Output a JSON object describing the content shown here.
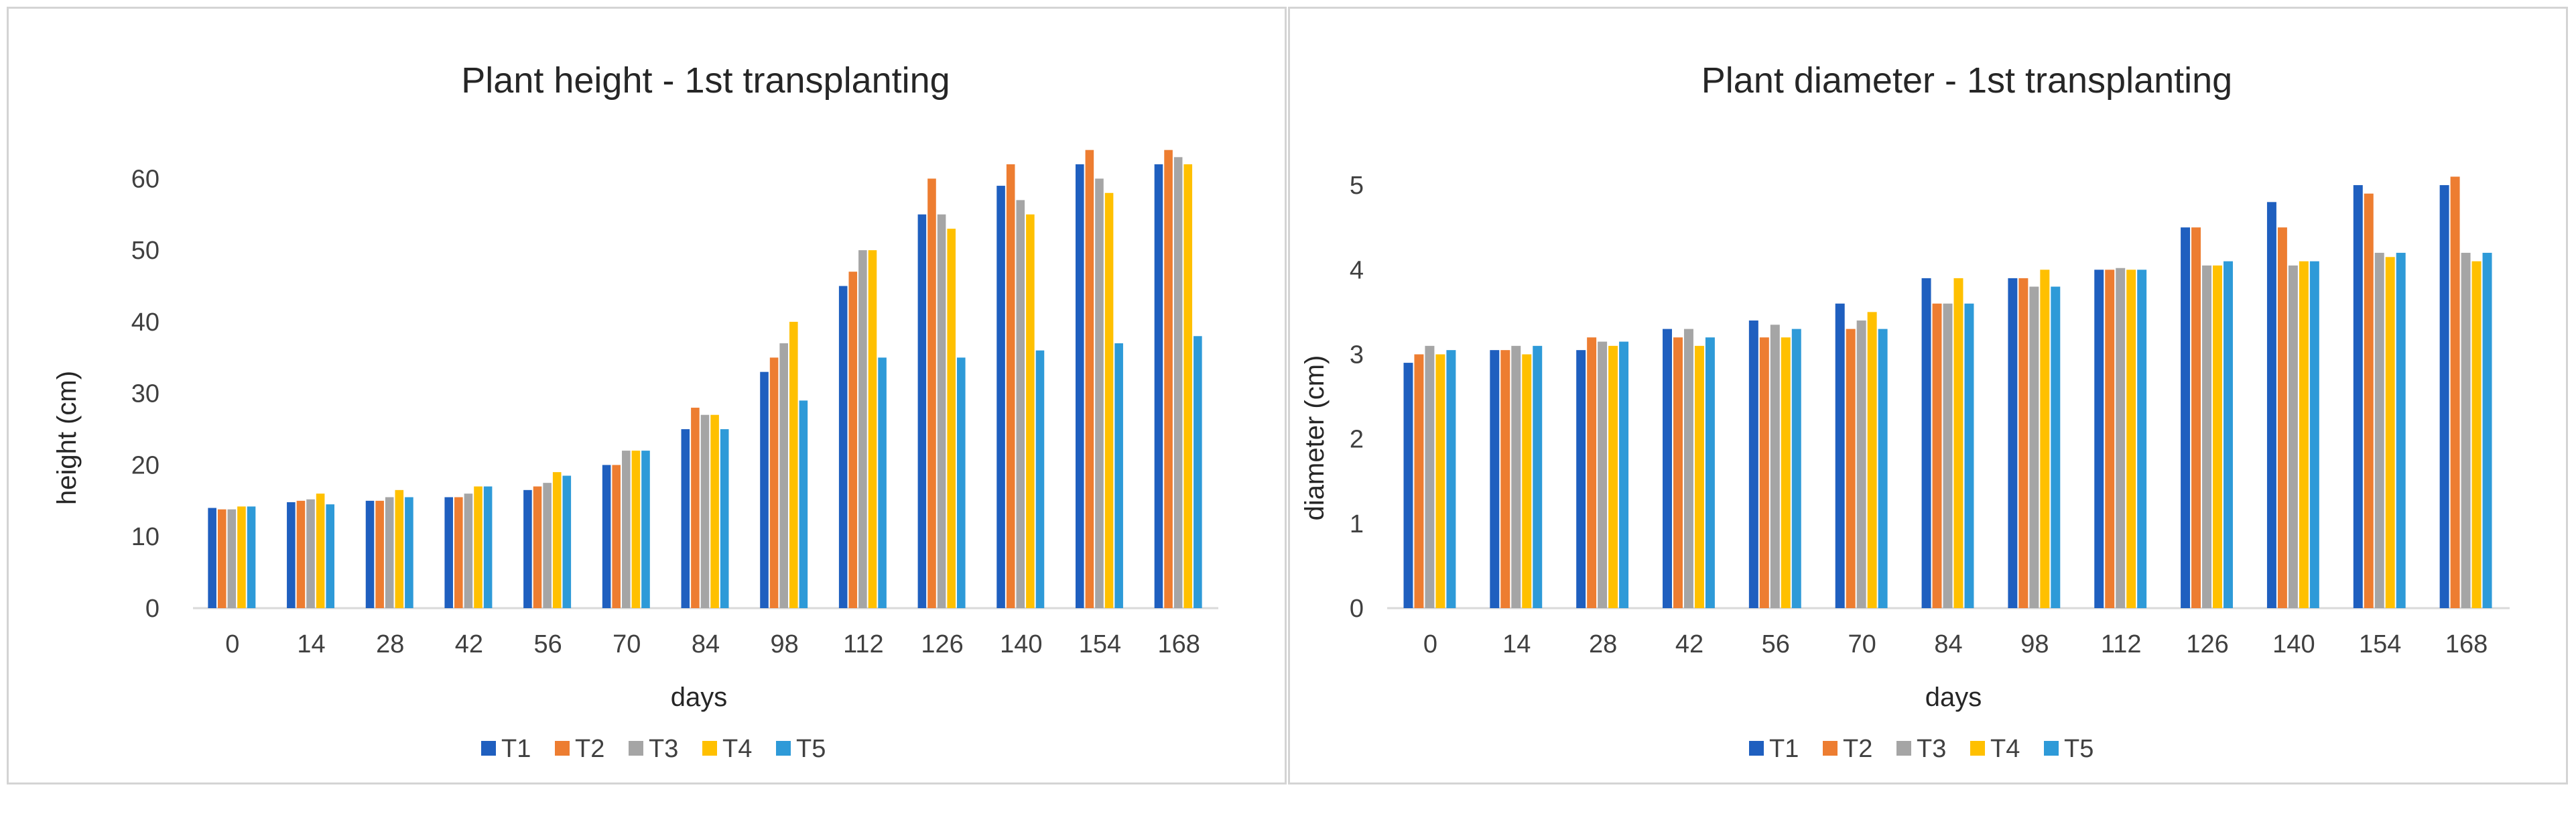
{
  "chart_data": [
    {
      "type": "bar",
      "title": "Plant height - 1st transplanting",
      "xlabel": "days",
      "ylabel": "height (cm)",
      "categories": [
        "0",
        "14",
        "28",
        "42",
        "56",
        "70",
        "84",
        "98",
        "112",
        "126",
        "140",
        "154",
        "168"
      ],
      "ylim": [
        0,
        60
      ],
      "yticks": [
        0,
        10,
        20,
        30,
        40,
        50,
        60
      ],
      "legend_position": "bottom",
      "series": [
        {
          "name": "T1",
          "color": "#1f5fbf",
          "values": [
            14,
            14.8,
            15,
            15.5,
            16.5,
            20,
            25,
            33,
            45,
            55,
            59,
            62,
            62
          ]
        },
        {
          "name": "T2",
          "color": "#ed7d31",
          "values": [
            13.8,
            15,
            15,
            15.5,
            17,
            20,
            28,
            35,
            47,
            60,
            62,
            64,
            64
          ]
        },
        {
          "name": "T3",
          "color": "#a5a5a5",
          "values": [
            13.8,
            15.2,
            15.5,
            16,
            17.5,
            22,
            27,
            37,
            50,
            55,
            57,
            60,
            63
          ]
        },
        {
          "name": "T4",
          "color": "#ffc000",
          "values": [
            14.2,
            16,
            16.5,
            17,
            19,
            22,
            27,
            40,
            50,
            53,
            55,
            58,
            62
          ]
        },
        {
          "name": "T5",
          "color": "#2e9ad8",
          "values": [
            14.2,
            14.5,
            15.5,
            17,
            18.5,
            22,
            25,
            29,
            35,
            35,
            36,
            37,
            38
          ]
        }
      ]
    },
    {
      "type": "bar",
      "title": "Plant diameter - 1st transplanting",
      "xlabel": "days",
      "ylabel": "diameter (cm)",
      "categories": [
        "0",
        "14",
        "28",
        "42",
        "56",
        "70",
        "84",
        "98",
        "112",
        "126",
        "140",
        "154",
        "168"
      ],
      "ylim": [
        0,
        5
      ],
      "yticks": [
        0,
        1,
        2,
        3,
        4,
        5
      ],
      "legend_position": "bottom",
      "series": [
        {
          "name": "T1",
          "color": "#1f5fbf",
          "values": [
            2.9,
            3.05,
            3.05,
            3.3,
            3.4,
            3.6,
            3.9,
            3.9,
            4.0,
            4.5,
            4.8,
            5.0,
            5.0
          ]
        },
        {
          "name": "T2",
          "color": "#ed7d31",
          "values": [
            3.0,
            3.05,
            3.2,
            3.2,
            3.2,
            3.3,
            3.6,
            3.9,
            4.0,
            4.5,
            4.5,
            4.9,
            5.1
          ]
        },
        {
          "name": "T3",
          "color": "#a5a5a5",
          "values": [
            3.1,
            3.1,
            3.15,
            3.3,
            3.35,
            3.4,
            3.6,
            3.8,
            4.02,
            4.05,
            4.05,
            4.2,
            4.2
          ]
        },
        {
          "name": "T4",
          "color": "#ffc000",
          "values": [
            3.0,
            3.0,
            3.1,
            3.1,
            3.2,
            3.5,
            3.9,
            4.0,
            4.0,
            4.05,
            4.1,
            4.15,
            4.1
          ]
        },
        {
          "name": "T5",
          "color": "#2e9ad8",
          "values": [
            3.05,
            3.1,
            3.15,
            3.2,
            3.3,
            3.3,
            3.6,
            3.8,
            4.0,
            4.1,
            4.1,
            4.2,
            4.2
          ]
        }
      ]
    }
  ]
}
